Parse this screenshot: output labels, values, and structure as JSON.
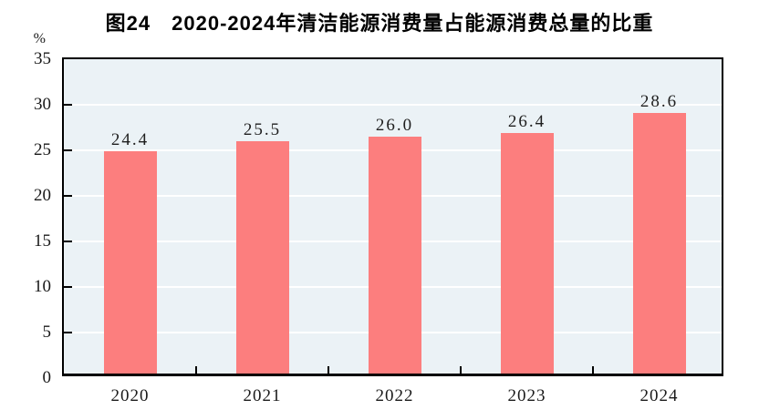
{
  "title": "图24　2020-2024年清洁能源消费量占能源消费总量的比重",
  "y_axis_unit": "%",
  "chart_data": {
    "type": "bar",
    "title": "图24　2020-2024年清洁能源消费量占能源消费总量的比重",
    "categories": [
      "2020",
      "2021",
      "2022",
      "2023",
      "2024"
    ],
    "values": [
      24.4,
      25.5,
      26.0,
      26.4,
      28.6
    ],
    "data_labels": [
      "24.4",
      "25.5",
      "26.0",
      "26.4",
      "28.6"
    ],
    "xlabel": "",
    "ylabel": "%",
    "ylim": [
      0,
      35
    ],
    "ytick_interval": 5,
    "ytick_labels": [
      "0",
      "5",
      "10",
      "15",
      "20",
      "25",
      "30",
      "35"
    ],
    "grid": true,
    "legend": false,
    "colors": {
      "bar_fill": "#fc7e7e",
      "plot_background": "#ebf2f6",
      "gridline": "#ffffff",
      "axis": "#000000",
      "text": "#1a1a1a"
    }
  }
}
